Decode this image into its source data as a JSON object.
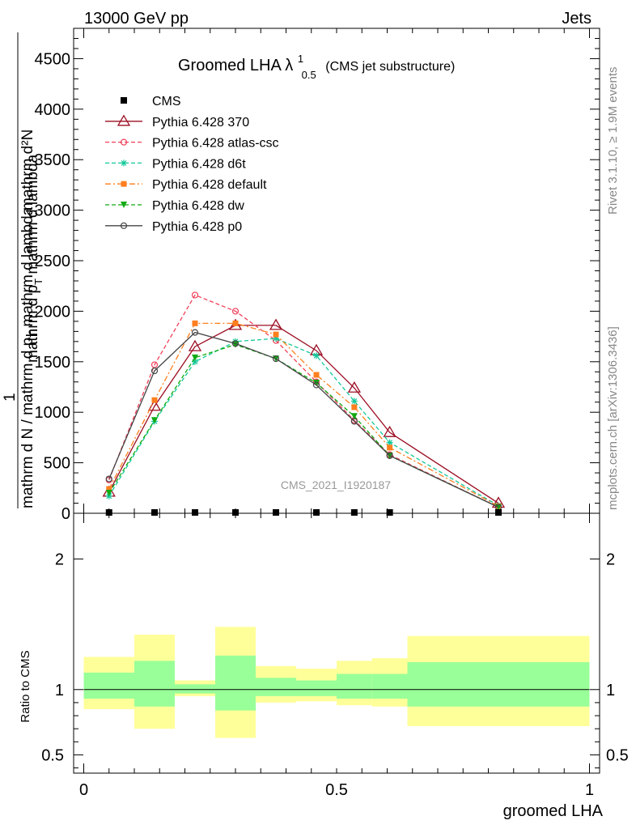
{
  "header": {
    "left": "13000 GeV pp",
    "right": "Jets"
  },
  "title": {
    "main": "Groomed LHA",
    "lambda": "λ",
    "sup": "1",
    "sub": "0.5",
    "small": "(CMS jet substructure)"
  },
  "watermark": "CMS_2021_I1920187",
  "side_labels": {
    "rivet": "Rivet 3.1.10, ≥ 1.9M events",
    "mcplots": "mcplots.cern.ch [arXiv:1306.3436]"
  },
  "ylabel_main": {
    "numerator": "mathrm d²N",
    "denominator_outer": "mathrm d N / mathrm d p",
    "denominator_sub": "T",
    "denominator_tail": " mathrm d lambda",
    "one": "1",
    "mid": " mathrm d p",
    "mid_sub": "T",
    "mid_tail": " mathrm d lambda"
  },
  "ylabel_ratio": "Ratio to CMS",
  "xlabel": "groomed LHA",
  "colors": {
    "data": "#000000",
    "p370": "#9b0d22",
    "atlas": "#f0405a",
    "d6t": "#14c89a",
    "default": "#ff7f1e",
    "dw": "#10aa10",
    "p0": "#444444",
    "band_outer": "#ffff99",
    "band_inner": "#99ff99"
  },
  "chart_data": {
    "type": "line",
    "main": {
      "ylim": [
        0,
        4800
      ],
      "yticks": [
        0,
        500,
        1000,
        1500,
        2000,
        2500,
        3000,
        3500,
        4000,
        4500
      ],
      "ytick_labels": [
        "0",
        "500",
        "1000",
        "1500",
        "2000",
        "2500",
        "3000",
        "3500",
        "4000",
        "4500"
      ]
    },
    "ratio": {
      "ylim": [
        0.36,
        2.35
      ],
      "yticks": [
        0.5,
        1,
        2
      ],
      "ytick_labels": [
        "0.5",
        "1",
        "2"
      ]
    },
    "xlim": [
      -0.02,
      1.02
    ],
    "xticks": [
      0,
      0.5,
      1
    ],
    "xtick_labels": [
      "0",
      "0.5",
      "1"
    ],
    "bin_edges": [
      0.0,
      0.1,
      0.18,
      0.26,
      0.34,
      0.42,
      0.5,
      0.57,
      0.64,
      1.0
    ],
    "x": [
      0.05,
      0.14,
      0.22,
      0.3,
      0.38,
      0.46,
      0.535,
      0.605,
      0.82
    ],
    "legend": [
      {
        "key": "cms",
        "label": "CMS"
      },
      {
        "key": "p370",
        "label": "Pythia 6.428 370"
      },
      {
        "key": "atlas",
        "label": "Pythia 6.428 atlas-csc"
      },
      {
        "key": "d6t",
        "label": "Pythia 6.428 d6t"
      },
      {
        "key": "default",
        "label": "Pythia 6.428 default"
      },
      {
        "key": "dw",
        "label": "Pythia 6.428 dw"
      },
      {
        "key": "p0",
        "label": "Pythia 6.428 p0"
      }
    ],
    "data_series": {
      "name": "CMS",
      "values": [
        0,
        0,
        0,
        0,
        0,
        0,
        0,
        0,
        0
      ]
    },
    "series": [
      {
        "key": "p370",
        "name": "Pythia 6.428 370",
        "values": [
          210,
          1060,
          1650,
          1860,
          1860,
          1610,
          1240,
          800,
          100
        ]
      },
      {
        "key": "atlas",
        "name": "Pythia 6.428 atlas-csc",
        "values": [
          330,
          1470,
          2160,
          2000,
          1710,
          1300,
          920,
          580,
          60
        ]
      },
      {
        "key": "d6t",
        "name": "Pythia 6.428 d6t",
        "values": [
          170,
          910,
          1500,
          1700,
          1730,
          1560,
          1110,
          700,
          75
        ]
      },
      {
        "key": "default",
        "name": "Pythia 6.428 default",
        "values": [
          240,
          1120,
          1880,
          1880,
          1770,
          1370,
          1050,
          650,
          70
        ]
      },
      {
        "key": "dw",
        "name": "Pythia 6.428 dw",
        "values": [
          200,
          920,
          1540,
          1670,
          1530,
          1290,
          960,
          570,
          60
        ]
      },
      {
        "key": "p0",
        "name": "Pythia 6.428 p0",
        "values": [
          340,
          1410,
          1790,
          1680,
          1530,
          1270,
          910,
          570,
          60
        ]
      }
    ],
    "ratio_bands": [
      {
        "outer": [
          0.85,
          1.25
        ],
        "inner": [
          0.93,
          1.13
        ]
      },
      {
        "outer": [
          0.7,
          1.42
        ],
        "inner": [
          0.87,
          1.22
        ]
      },
      {
        "outer": [
          0.95,
          1.07
        ],
        "inner": [
          0.97,
          1.04
        ]
      },
      {
        "outer": [
          0.63,
          1.48
        ],
        "inner": [
          0.84,
          1.26
        ]
      },
      {
        "outer": [
          0.9,
          1.18
        ],
        "inner": [
          0.95,
          1.09
        ]
      },
      {
        "outer": [
          0.91,
          1.16
        ],
        "inner": [
          0.95,
          1.07
        ]
      },
      {
        "outer": [
          0.88,
          1.22
        ],
        "inner": [
          0.93,
          1.12
        ]
      },
      {
        "outer": [
          0.87,
          1.24
        ],
        "inner": [
          0.93,
          1.12
        ]
      },
      {
        "outer": [
          0.72,
          1.41
        ],
        "inner": [
          0.87,
          1.21
        ]
      }
    ]
  }
}
